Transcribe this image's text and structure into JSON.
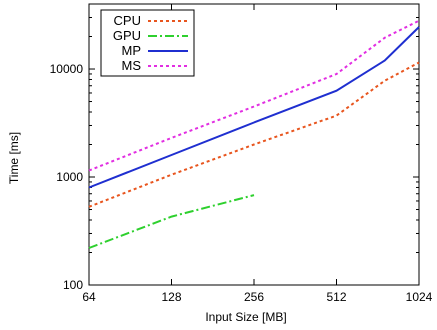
{
  "chart_data": {
    "type": "line",
    "title": "",
    "xlabel": "Input Size [MB]",
    "ylabel": "Time [ms]",
    "xscale": "log2",
    "yscale": "log10",
    "xlim": [
      64,
      1024
    ],
    "ylim": [
      100,
      40000
    ],
    "xticks": [
      64,
      128,
      256,
      512,
      1024
    ],
    "xtick_labels": [
      "64",
      "128",
      "256",
      "512",
      "1024"
    ],
    "yticks": [
      100,
      1000,
      10000
    ],
    "ytick_labels": [
      "100",
      "1000",
      "10000"
    ],
    "grid": false,
    "legend_position": "top-left",
    "series": [
      {
        "name": "CPU",
        "color": "#e8551e",
        "dash": "dotted",
        "x": [
          64,
          128,
          256,
          512,
          768,
          1024
        ],
        "y": [
          530,
          1050,
          2000,
          3700,
          7800,
          11500
        ]
      },
      {
        "name": "GPU",
        "color": "#2ed02e",
        "dash": "dash-dot",
        "x": [
          64,
          128,
          256
        ],
        "y": [
          220,
          430,
          680
        ]
      },
      {
        "name": "MP",
        "color": "#1f2fd0",
        "dash": "solid",
        "x": [
          64,
          128,
          256,
          512,
          768,
          1024
        ],
        "y": [
          800,
          1600,
          3200,
          6300,
          12000,
          24500
        ]
      },
      {
        "name": "MS",
        "color": "#e22ee2",
        "dash": "dotted",
        "x": [
          64,
          128,
          256,
          512,
          768,
          1024
        ],
        "y": [
          1150,
          2300,
          4500,
          9000,
          19500,
          28000
        ]
      }
    ]
  }
}
